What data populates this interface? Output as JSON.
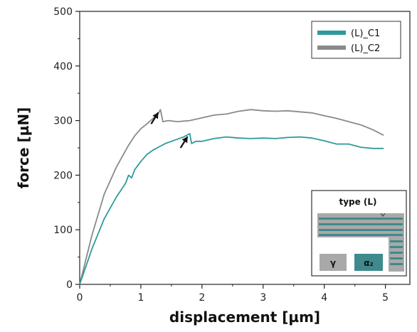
{
  "chart_data": {
    "type": "line",
    "xlabel": "displacement [µm]",
    "ylabel": "force [µN]",
    "xlim": [
      0,
      5.4
    ],
    "ylim": [
      0,
      500
    ],
    "xticks": [
      0,
      1,
      2,
      3,
      4,
      5
    ],
    "yticks": [
      0,
      100,
      200,
      300,
      400,
      500
    ],
    "legend_position": "top-right",
    "series": [
      {
        "name": "(L)_C1",
        "color": "#2e9a9a",
        "points": [
          [
            0,
            0
          ],
          [
            0.2,
            65
          ],
          [
            0.4,
            120
          ],
          [
            0.6,
            160
          ],
          [
            0.75,
            185
          ],
          [
            0.8,
            200
          ],
          [
            0.85,
            195
          ],
          [
            0.9,
            210
          ],
          [
            1.0,
            225
          ],
          [
            1.1,
            238
          ],
          [
            1.2,
            246
          ],
          [
            1.3,
            252
          ],
          [
            1.4,
            258
          ],
          [
            1.5,
            262
          ],
          [
            1.6,
            266
          ],
          [
            1.7,
            270
          ],
          [
            1.8,
            276
          ],
          [
            1.83,
            258
          ],
          [
            1.9,
            262
          ],
          [
            2.0,
            262
          ],
          [
            2.2,
            267
          ],
          [
            2.4,
            270
          ],
          [
            2.6,
            268
          ],
          [
            2.8,
            267
          ],
          [
            3.0,
            268
          ],
          [
            3.2,
            267
          ],
          [
            3.4,
            269
          ],
          [
            3.6,
            270
          ],
          [
            3.8,
            268
          ],
          [
            4.0,
            263
          ],
          [
            4.2,
            257
          ],
          [
            4.4,
            257
          ],
          [
            4.6,
            251
          ],
          [
            4.8,
            249
          ],
          [
            4.97,
            249
          ]
        ]
      },
      {
        "name": "(L)_C2",
        "color": "#8a8a8a",
        "points": [
          [
            0,
            0
          ],
          [
            0.2,
            90
          ],
          [
            0.4,
            165
          ],
          [
            0.6,
            215
          ],
          [
            0.8,
            255
          ],
          [
            0.9,
            272
          ],
          [
            1.0,
            285
          ],
          [
            1.1,
            294
          ],
          [
            1.2,
            304
          ],
          [
            1.28,
            312
          ],
          [
            1.32,
            320
          ],
          [
            1.36,
            298
          ],
          [
            1.45,
            300
          ],
          [
            1.6,
            298
          ],
          [
            1.8,
            300
          ],
          [
            2.0,
            305
          ],
          [
            2.2,
            310
          ],
          [
            2.4,
            312
          ],
          [
            2.6,
            317
          ],
          [
            2.8,
            320
          ],
          [
            3.0,
            318
          ],
          [
            3.2,
            317
          ],
          [
            3.4,
            318
          ],
          [
            3.6,
            316
          ],
          [
            3.8,
            314
          ],
          [
            4.0,
            309
          ],
          [
            4.2,
            304
          ],
          [
            4.4,
            298
          ],
          [
            4.6,
            292
          ],
          [
            4.8,
            283
          ],
          [
            4.97,
            273
          ]
        ]
      }
    ],
    "annotations": [
      {
        "type": "arrow",
        "target": [
          1.32,
          320
        ],
        "series": "(L)_C2"
      },
      {
        "type": "arrow",
        "target": [
          1.8,
          276
        ],
        "series": "(L)_C1"
      }
    ],
    "inset": {
      "title": "type (L)",
      "labels": [
        "γ",
        "α₂"
      ],
      "colors": {
        "gamma": "#a9a9a9",
        "alpha2": "#3f8a8c"
      }
    }
  }
}
